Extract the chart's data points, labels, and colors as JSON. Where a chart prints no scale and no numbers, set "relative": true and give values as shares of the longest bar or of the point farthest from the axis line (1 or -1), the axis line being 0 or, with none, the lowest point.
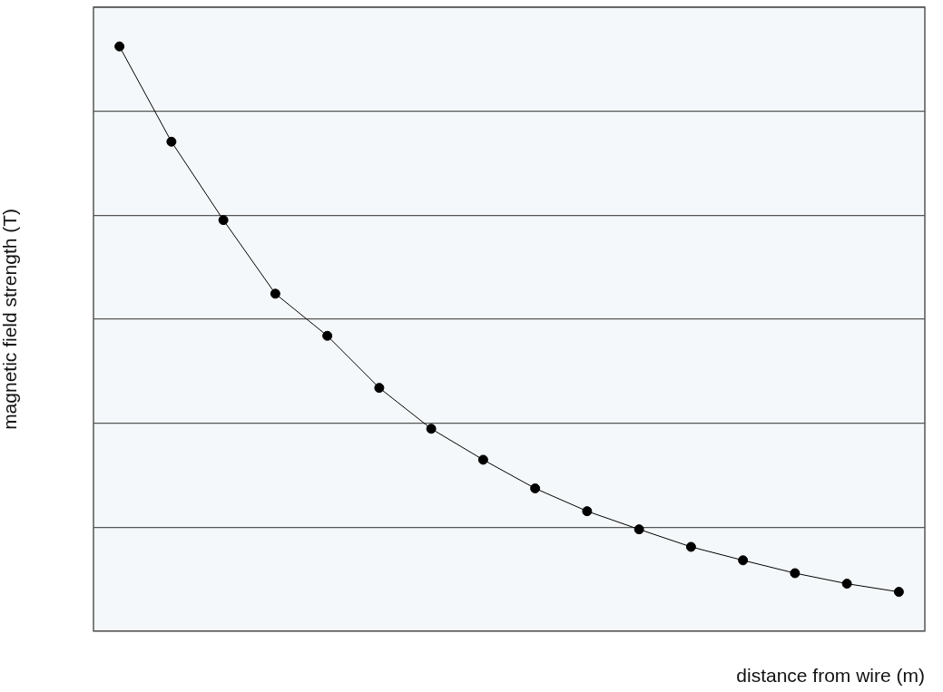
{
  "chart_data": {
    "type": "line",
    "xlabel": "distance from wire (m)",
    "ylabel": "magnetic field strength (T)",
    "relative": true,
    "grid": "y",
    "marker": "circle",
    "legend": false,
    "categories": [
      null,
      null,
      null,
      null,
      null,
      null,
      null,
      null,
      null,
      null,
      null,
      null,
      null,
      null,
      null,
      null
    ],
    "series": [
      {
        "color": "#000000",
        "values": [
          1,
          0.837,
          0.703,
          0.577,
          0.505,
          0.416,
          0.346,
          0.293,
          0.244,
          0.205,
          0.174,
          0.144,
          0.121,
          0.099,
          0.081,
          0.067
        ]
      }
    ]
  }
}
